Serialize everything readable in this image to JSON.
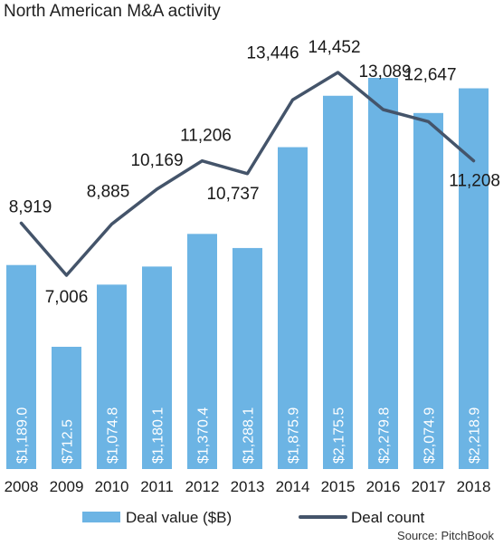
{
  "chart_data": {
    "type": "bar",
    "title": "North American M&A activity",
    "xlabel": "",
    "ylabel": "",
    "categories": [
      "2008",
      "2009",
      "2010",
      "2011",
      "2012",
      "2013",
      "2014",
      "2015",
      "2016",
      "2017",
      "2018"
    ],
    "series": [
      {
        "name": "Deal value ($B)",
        "type": "bar",
        "color": "#6cb4e4",
        "values": [
          1189.0,
          712.5,
          1074.8,
          1180.1,
          1370.4,
          1288.1,
          1875.9,
          2175.5,
          2279.8,
          2074.9,
          2218.9
        ],
        "labels": [
          "$1,189.0",
          "$712.5",
          "$1,074.8",
          "$1,180.1",
          "$1,370.4",
          "$1,288.1",
          "$1,875.9",
          "$2,175.5",
          "$2,279.8",
          "$2,074.9",
          "$2,218.9"
        ]
      },
      {
        "name": "Deal count",
        "type": "line",
        "color": "#44546a",
        "values": [
          8919,
          7006,
          8885,
          10169,
          11206,
          10737,
          13446,
          14452,
          13089,
          12647,
          11208
        ],
        "labels": [
          "8,919",
          "7,006",
          "8,885",
          "10,169",
          "11,206",
          "10,737",
          "13,446",
          "14,452",
          "13,089",
          "12,647",
          "11,208"
        ]
      }
    ],
    "legend_position": "bottom",
    "grid": false,
    "source": "Source: PitchBook"
  }
}
